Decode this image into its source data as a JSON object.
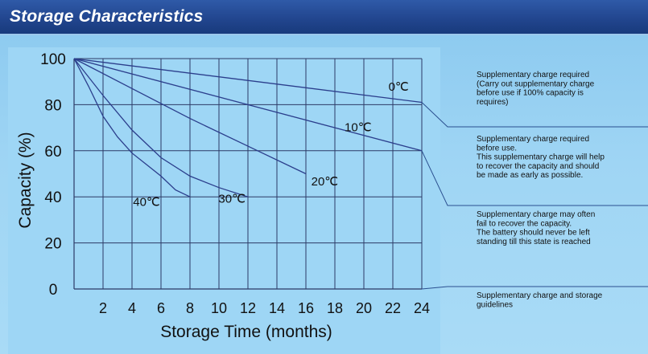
{
  "header": {
    "title": "Storage Characteristics"
  },
  "chart_data": {
    "type": "line",
    "xlabel": "Storage Time (months)",
    "ylabel": "Capacity (%)",
    "xlim": [
      0,
      24
    ],
    "ylim": [
      0,
      100
    ],
    "xticks": [
      2,
      4,
      6,
      8,
      10,
      12,
      14,
      16,
      18,
      20,
      22,
      24
    ],
    "yticks": [
      0,
      20,
      40,
      60,
      80,
      100
    ],
    "grid": true,
    "series": [
      {
        "name": "0℃",
        "x": [
          0,
          24
        ],
        "y": [
          100,
          81
        ]
      },
      {
        "name": "10℃",
        "x": [
          0,
          24
        ],
        "y": [
          100,
          60
        ]
      },
      {
        "name": "20℃",
        "x": [
          0,
          4,
          8,
          12,
          16
        ],
        "y": [
          100,
          87,
          74,
          62,
          50
        ]
      },
      {
        "name": "30℃",
        "x": [
          0,
          2,
          4,
          6,
          8,
          10,
          12
        ],
        "y": [
          100,
          84,
          69,
          57,
          49,
          44,
          40
        ]
      },
      {
        "name": "40℃",
        "x": [
          0,
          1,
          2,
          3,
          4,
          5,
          6,
          7,
          8
        ],
        "y": [
          100,
          88,
          75,
          66,
          59,
          54,
          49,
          43,
          40
        ]
      }
    ],
    "annotations": [
      "Supplementary charge required\n(Carry out supplementary charge\nbefore use if 100% capacity is\nrequires)",
      "Supplementary charge required\nbefore use.\nThis supplementary charge will help\nto recover the capacity and should\nbe made  as early as possible.",
      "Supplementary charge may often\nfail to recover the capacity.\nThe battery should never be left\nstanding till this state is reached",
      "Supplementary charge and storage\nguidelines"
    ]
  },
  "colors": {
    "line": "#2b3e8c",
    "grid": "#2c3a66",
    "plot_bg": "#9ed6f5",
    "note_line": "#2a4f8f",
    "text": "#111111"
  }
}
